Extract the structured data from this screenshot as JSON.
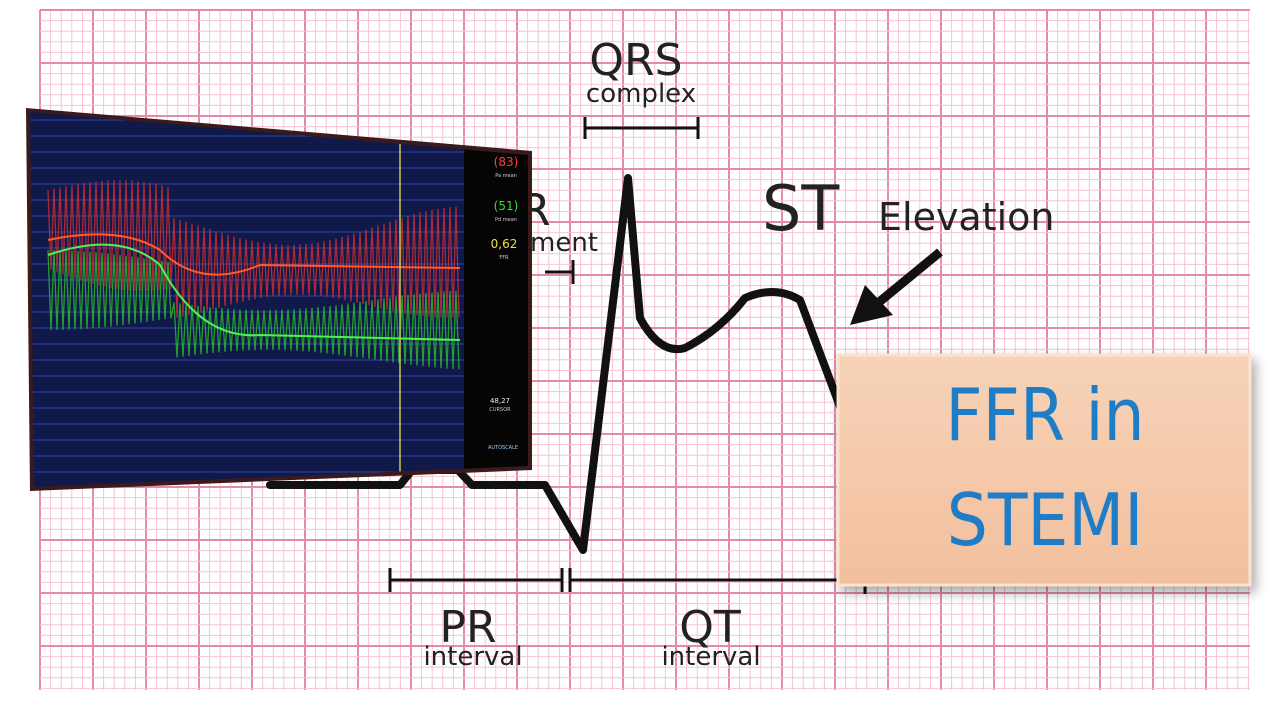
{
  "ecg": {
    "qrs": {
      "title": "QRS",
      "subtitle": "complex"
    },
    "st": {
      "title": "ST",
      "subtitle": "Elevation"
    },
    "pr_segment": {
      "title": "R",
      "subtitle": "ment"
    },
    "pr_interval": {
      "title": "PR",
      "subtitle": "interval"
    },
    "qt_interval": {
      "title": "QT",
      "subtitle": "interval"
    }
  },
  "monitor": {
    "pa": {
      "value": "(83)",
      "label": "Pa mean"
    },
    "pd": {
      "value": "(51)",
      "label": "Pd mean"
    },
    "ffr": {
      "value": "0,62",
      "label": "FFR"
    },
    "cursor": {
      "value": "48,27",
      "label": "CURSOR"
    },
    "autoscale": "AUTOSCALE"
  },
  "banner": {
    "line1": "FFR in",
    "line2": "STEMI"
  }
}
